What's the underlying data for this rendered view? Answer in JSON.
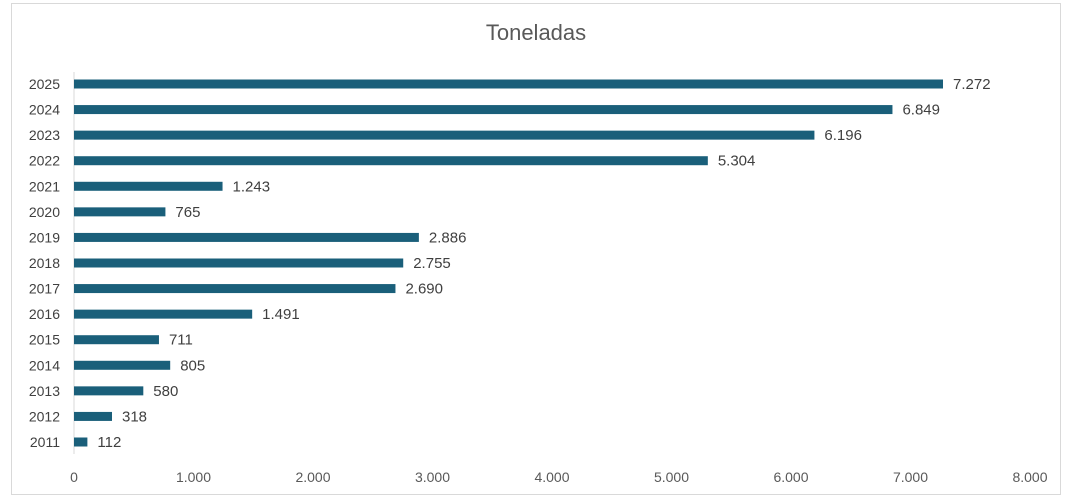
{
  "chart_data": {
    "type": "bar",
    "orientation": "horizontal",
    "title": "Toneladas",
    "xlabel": "",
    "ylabel": "",
    "categories": [
      "2011",
      "2012",
      "2013",
      "2014",
      "2015",
      "2016",
      "2017",
      "2018",
      "2019",
      "2020",
      "2021",
      "2022",
      "2023",
      "2024",
      "2025"
    ],
    "values": [
      112,
      318,
      580,
      805,
      711,
      1491,
      2690,
      2755,
      2886,
      765,
      1243,
      5304,
      6196,
      6849,
      7272
    ],
    "value_labels": [
      "112",
      "318",
      "580",
      "805",
      "711",
      "1.491",
      "2.690",
      "2.755",
      "2.886",
      "765",
      "1.243",
      "5.304",
      "6.196",
      "6.849",
      "7.272"
    ],
    "xlim": [
      0,
      8000
    ],
    "x_ticks": [
      0,
      1000,
      2000,
      3000,
      4000,
      5000,
      6000,
      7000,
      8000
    ],
    "x_tick_labels": [
      "0",
      "1.000",
      "2.000",
      "3.000",
      "4.000",
      "5.000",
      "6.000",
      "7.000",
      "8.000"
    ],
    "grid": false,
    "legend": "none",
    "bar_color": "#1a5f7a"
  }
}
